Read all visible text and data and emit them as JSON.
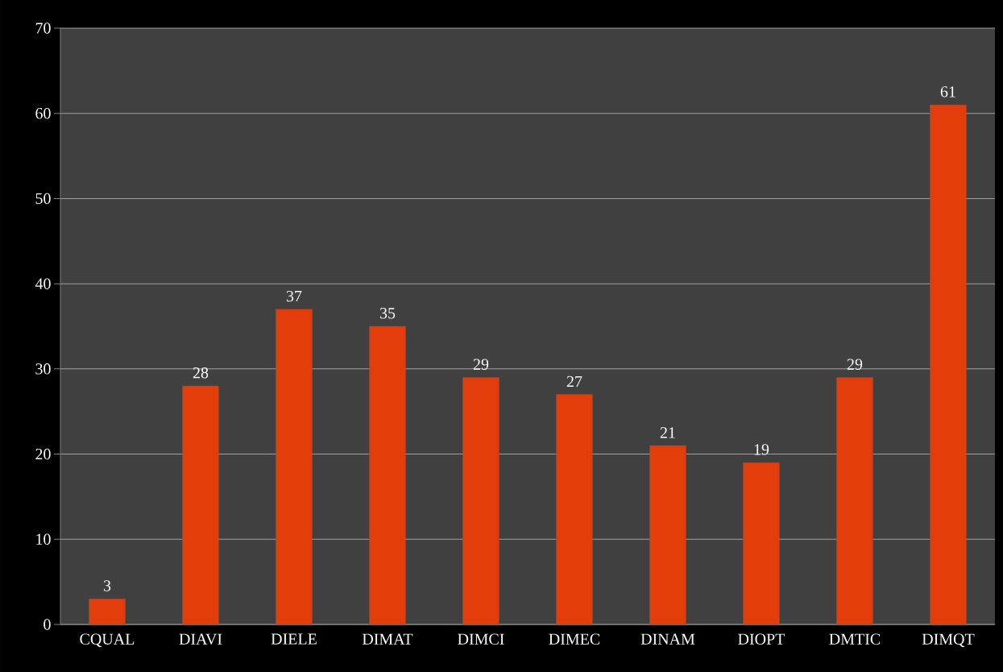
{
  "chart_data": {
    "type": "bar",
    "categories": [
      "CQUAL",
      "DIAVI",
      "DIELE",
      "DIMAT",
      "DIMCI",
      "DIMEC",
      "DINAM",
      "DIOPT",
      "DMTIC",
      "DIMQT"
    ],
    "values": [
      3,
      28,
      37,
      35,
      29,
      27,
      21,
      19,
      29,
      61
    ],
    "color": "#e23d0a",
    "ylim": [
      0,
      70
    ],
    "yticks": [
      0,
      10,
      20,
      30,
      40,
      50,
      60,
      70
    ],
    "grid": "y",
    "data_labels": true
  }
}
